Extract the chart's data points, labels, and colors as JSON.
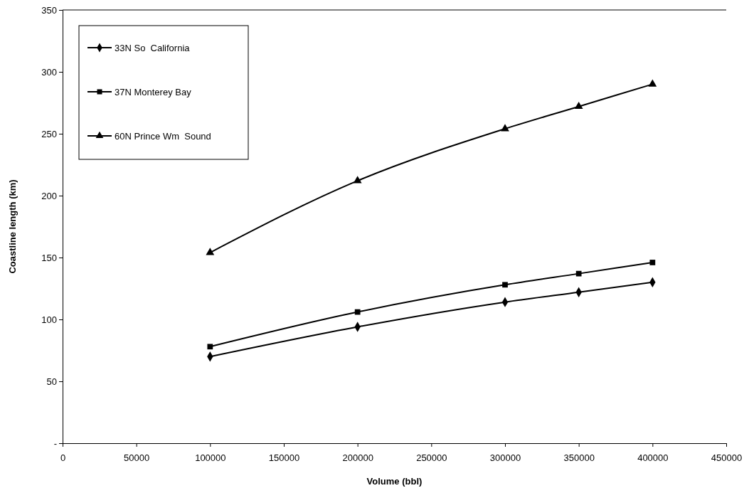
{
  "chart_data": {
    "type": "line",
    "xlabel": "Volume (bbl)",
    "ylabel": "Coastline length (km)",
    "xlim": [
      0,
      450000
    ],
    "xticks": [
      0,
      50000,
      100000,
      150000,
      200000,
      250000,
      300000,
      350000,
      400000,
      450000
    ],
    "ylim": [
      0,
      350
    ],
    "yticks": [
      {
        "value": 0,
        "label": "-"
      },
      50,
      100,
      150,
      200,
      250,
      300,
      350
    ],
    "x": [
      100000,
      200000,
      300000,
      350000,
      400000
    ],
    "series": [
      {
        "name": "33N So  California",
        "color": "#000000",
        "marker": "diamond",
        "values": [
          70,
          94,
          114,
          122,
          130
        ]
      },
      {
        "name": "37N Monterey Bay",
        "color": "#000000",
        "marker": "square",
        "values": [
          78,
          106,
          128,
          137,
          146
        ]
      },
      {
        "name": "60N Prince Wm  Sound",
        "color": "#000000",
        "marker": "triangle",
        "values": [
          154,
          212,
          254,
          272,
          290
        ]
      }
    ],
    "legend": "top left",
    "grid": false,
    "line_style": "solid"
  }
}
